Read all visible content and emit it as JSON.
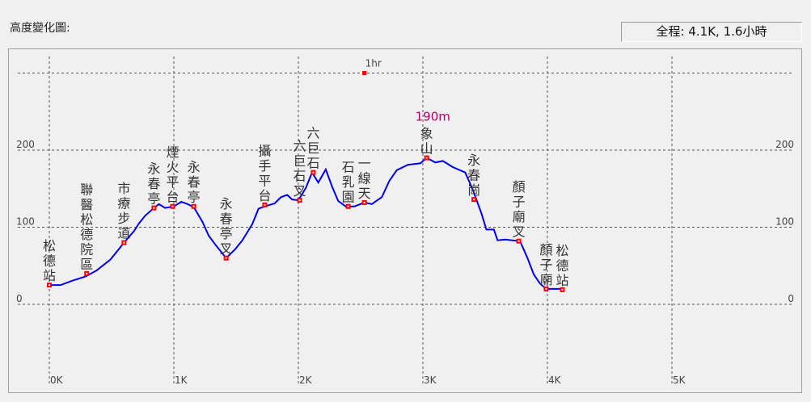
{
  "header": {
    "title": "高度變化圖:",
    "summary": "全程: 4.1K, 1.6小時"
  },
  "colors": {
    "line": "#0000ee",
    "marker": "#ff0000",
    "max_label": "#b0006a",
    "grid": "#555555"
  },
  "chart_data": {
    "type": "line",
    "xlim": [
      0,
      5.3
    ],
    "ylim": [
      -100,
      310
    ],
    "x_ticks": [
      {
        "v": 0,
        "label": "0K"
      },
      {
        "v": 1,
        "label": "1K"
      },
      {
        "v": 2,
        "label": "2K"
      },
      {
        "v": 3,
        "label": "3K"
      },
      {
        "v": 4,
        "label": "4K"
      },
      {
        "v": 5,
        "label": "5K"
      }
    ],
    "y_ticks": [
      {
        "v": 0,
        "label": "0"
      },
      {
        "v": 100,
        "label": "100"
      },
      {
        "v": 200,
        "label": "200"
      }
    ],
    "y_gridlines": [
      0,
      100,
      200,
      300
    ],
    "grid": true,
    "x_unit": "km",
    "y_unit": "m",
    "profile": [
      [
        0,
        25
      ],
      [
        0.09,
        25
      ],
      [
        0.19,
        31
      ],
      [
        0.29,
        36
      ],
      [
        0.38,
        44
      ],
      [
        0.49,
        58
      ],
      [
        0.6,
        80
      ],
      [
        0.68,
        95
      ],
      [
        0.72,
        105
      ],
      [
        0.77,
        115
      ],
      [
        0.84,
        125
      ],
      [
        0.88,
        130
      ],
      [
        0.93,
        125
      ],
      [
        1.0,
        127
      ],
      [
        1.06,
        133
      ],
      [
        1.11,
        130
      ],
      [
        1.16,
        126
      ],
      [
        1.23,
        107
      ],
      [
        1.28,
        89
      ],
      [
        1.34,
        76
      ],
      [
        1.42,
        60
      ],
      [
        1.49,
        71
      ],
      [
        1.55,
        83
      ],
      [
        1.63,
        104
      ],
      [
        1.68,
        124
      ],
      [
        1.73,
        127
      ],
      [
        1.81,
        131
      ],
      [
        1.86,
        139
      ],
      [
        1.91,
        142
      ],
      [
        1.95,
        136
      ],
      [
        2.0,
        135
      ],
      [
        2.06,
        151
      ],
      [
        2.11,
        171
      ],
      [
        2.16,
        158
      ],
      [
        2.22,
        175
      ],
      [
        2.27,
        153
      ],
      [
        2.32,
        134
      ],
      [
        2.38,
        127
      ],
      [
        2.45,
        127
      ],
      [
        2.53,
        132
      ],
      [
        2.59,
        130
      ],
      [
        2.67,
        139
      ],
      [
        2.73,
        160
      ],
      [
        2.79,
        174
      ],
      [
        2.88,
        181
      ],
      [
        2.98,
        183
      ],
      [
        3.03,
        190
      ],
      [
        3.1,
        184
      ],
      [
        3.16,
        186
      ],
      [
        3.24,
        178
      ],
      [
        3.34,
        171
      ],
      [
        3.4,
        149
      ],
      [
        3.47,
        118
      ],
      [
        3.51,
        97
      ],
      [
        3.57,
        97
      ],
      [
        3.6,
        83
      ],
      [
        3.66,
        84
      ],
      [
        3.78,
        82
      ],
      [
        3.84,
        60
      ],
      [
        3.89,
        39
      ],
      [
        3.94,
        27
      ],
      [
        3.99,
        20
      ],
      [
        4.11,
        20
      ]
    ],
    "waypoints": [
      {
        "name": "松德站",
        "x": 0,
        "y": 25
      },
      {
        "name": "聯醫松德院區",
        "x": 0.3,
        "y": 40
      },
      {
        "name": "市療步道",
        "x": 0.6,
        "y": 80
      },
      {
        "name": "永春亭",
        "x": 0.84,
        "y": 125
      },
      {
        "name": "煙火平台",
        "x": 0.99,
        "y": 127
      },
      {
        "name": "永春亭",
        "x": 1.16,
        "y": 127
      },
      {
        "name": "永春亭叉",
        "x": 1.42,
        "y": 60
      },
      {
        "name": "攝手平台",
        "x": 1.73,
        "y": 129
      },
      {
        "name": "六巨石叉",
        "x": 2.01,
        "y": 135
      },
      {
        "name": "六巨石",
        "x": 2.12,
        "y": 171
      },
      {
        "name": "石乳園",
        "x": 2.4,
        "y": 127
      },
      {
        "name": "一線天",
        "x": 2.53,
        "y": 132
      },
      {
        "name": "象山",
        "x": 3.03,
        "y": 190
      },
      {
        "name": "永春崗",
        "x": 3.41,
        "y": 136
      },
      {
        "name": "顏子廟叉",
        "x": 3.77,
        "y": 82
      },
      {
        "name": "顏子廟",
        "x": 3.99,
        "y": 20
      },
      {
        "name": "松德站",
        "x": 4.12,
        "y": 19
      }
    ],
    "max_label": {
      "text": "190m",
      "x": 3.03,
      "y": 190
    },
    "time_markers": [
      {
        "label": "1hr",
        "x": 2.53
      }
    ]
  }
}
